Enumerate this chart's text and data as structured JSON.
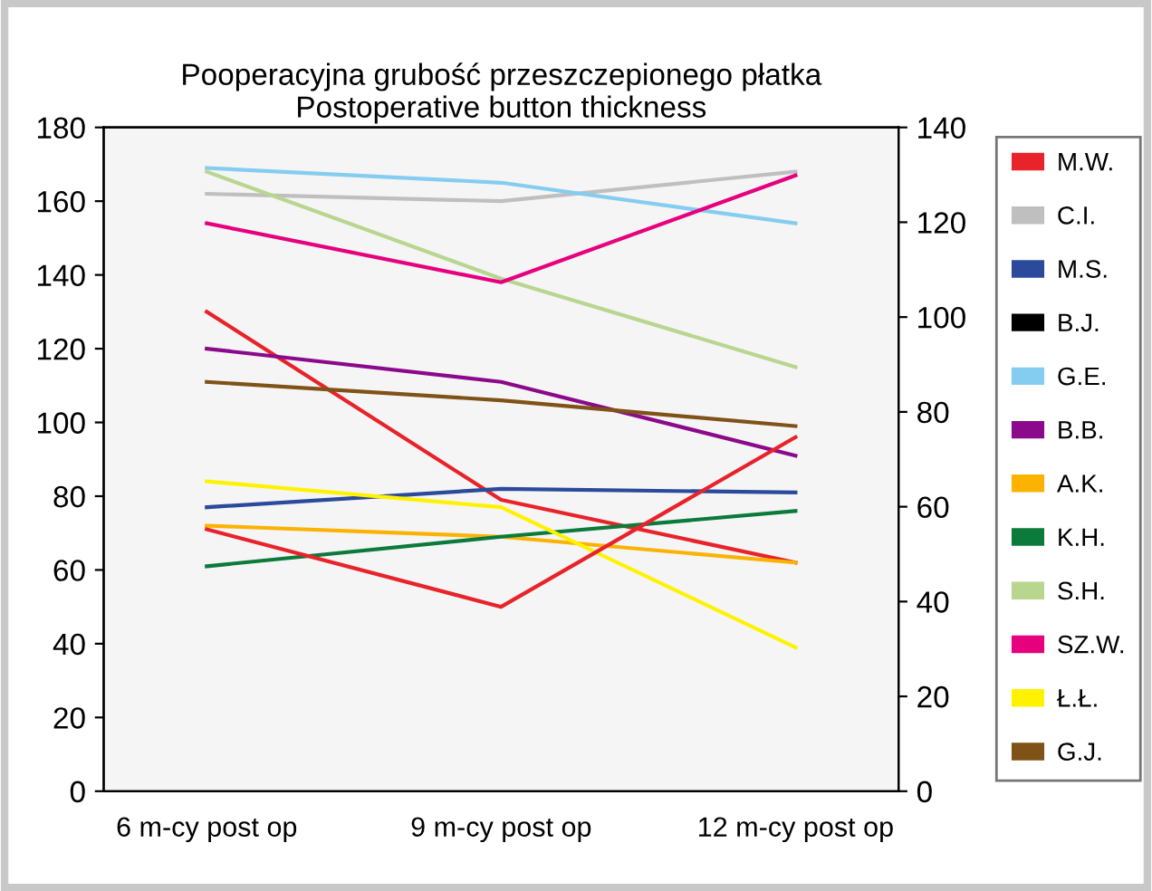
{
  "chart_data": {
    "type": "line",
    "title": "Pooperacyjna grubość przeszczepionego płatka\nPostoperative button thickness",
    "categories": [
      "6 m-cy post op",
      "9 m-cy post op",
      "12 m-cy post op"
    ],
    "series": [
      {
        "name": "M.W.",
        "color": "#e8232a",
        "values": [
          130,
          79,
          62
        ]
      },
      {
        "name": "C.I.",
        "color": "#bfbfbf",
        "values": [
          162,
          160,
          168
        ]
      },
      {
        "name": "M.S.",
        "color": "#2b4a9c",
        "values": [
          77,
          82,
          81
        ]
      },
      {
        "name": "B.J.",
        "color": "#000000",
        "values": [
          null,
          null,
          null
        ]
      },
      {
        "name": "G.E.",
        "color": "#84cdf0",
        "values": [
          169,
          165,
          154
        ]
      },
      {
        "name": "B.B.",
        "color": "#8b0a8b",
        "values": [
          120,
          111,
          91
        ]
      },
      {
        "name": "A.K.",
        "color": "#fbb200",
        "values": [
          72,
          69,
          62
        ]
      },
      {
        "name": "K.H.",
        "color": "#0b7a3a",
        "values": [
          61,
          69,
          76
        ]
      },
      {
        "name": "S.H.",
        "color": "#b8d68e",
        "values": [
          168,
          139,
          115
        ]
      },
      {
        "name": "SZ.W.",
        "color": "#e6007e",
        "values": [
          154,
          138,
          167
        ]
      },
      {
        "name": "Ł.Ł.",
        "color": "#fff200",
        "values": [
          84,
          77,
          39
        ]
      },
      {
        "name": "G.J.",
        "color": "#7f5217",
        "values": [
          111,
          106,
          99
        ]
      },
      {
        "color": "#e8232a",
        "values": [
          71,
          50,
          96
        ]
      }
    ],
    "ylim": [
      0,
      180
    ],
    "yticks": [
      0,
      20,
      40,
      60,
      80,
      100,
      120,
      140,
      160,
      180
    ],
    "y2lim": [
      0,
      140
    ],
    "y2ticks": [
      0,
      20,
      40,
      60,
      80,
      100,
      120,
      140
    ],
    "grid": false,
    "legend": "right",
    "marker": "none",
    "line_style": "solid"
  }
}
